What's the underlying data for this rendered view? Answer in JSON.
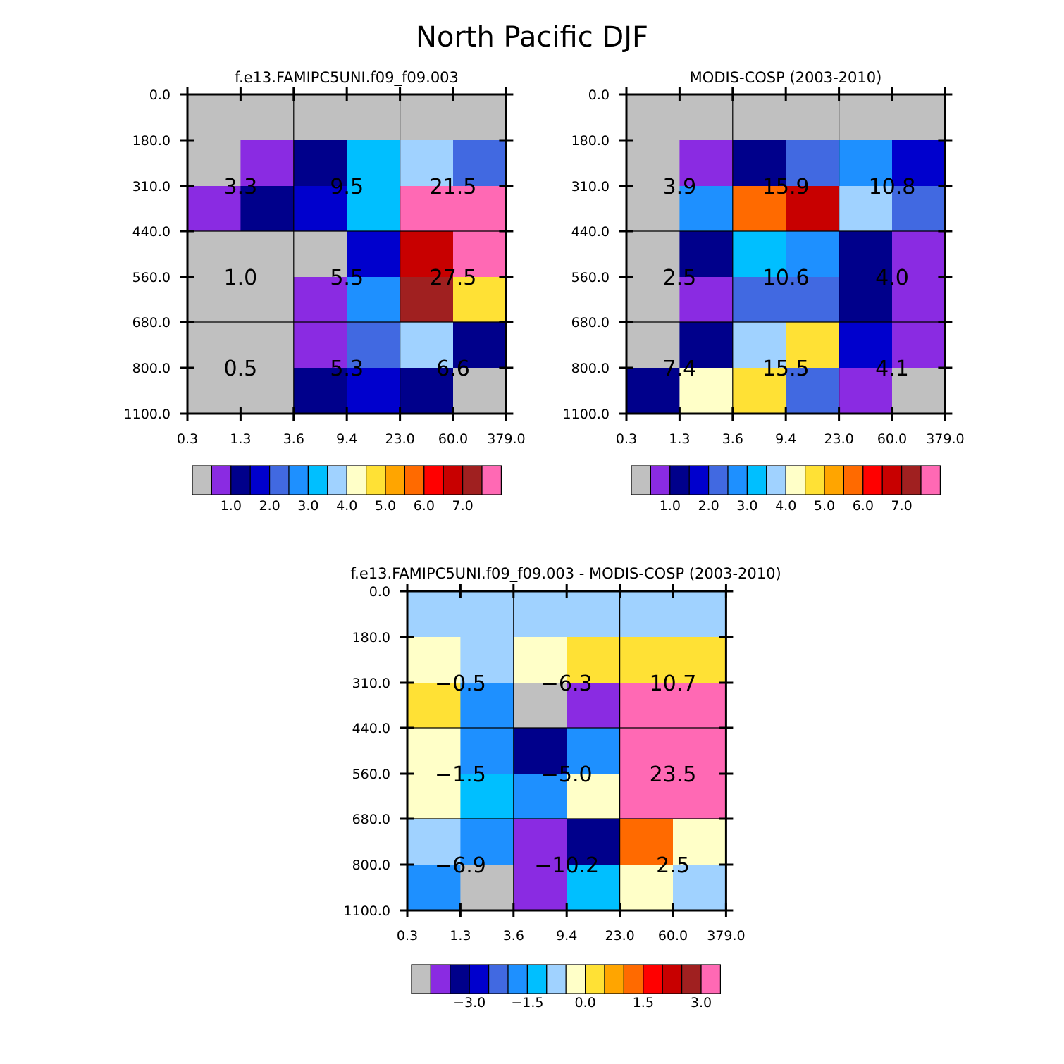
{
  "title": "North Pacific DJF",
  "palette": [
    "#c0c0c0",
    "#8a2be2",
    "#00008b",
    "#0000cd",
    "#4169e1",
    "#1e90ff",
    "#00bfff",
    "#a0d2ff",
    "#ffffc8",
    "#ffe135",
    "#ffa500",
    "#ff6a00",
    "#ff0000",
    "#c80000",
    "#a02020",
    "#ff69b4"
  ],
  "chart_data": [
    {
      "type": "heatmap",
      "title": "f.e13.FAMIPC5UNI.f09_f09.003",
      "x_tick_labels": [
        "0.3",
        "1.3",
        "3.6",
        "9.4",
        "23.0",
        "60.0",
        "379.0"
      ],
      "y_tick_labels": [
        "0.0",
        "180.0",
        "310.0",
        "440.0",
        "560.0",
        "680.0",
        "800.0",
        "1100.0"
      ],
      "cells": [
        [
          0,
          0,
          0,
          0,
          0,
          0
        ],
        [
          0,
          1,
          2,
          6,
          7,
          4
        ],
        [
          1,
          2,
          3,
          6,
          15,
          15
        ],
        [
          0,
          0,
          0,
          3,
          13,
          15
        ],
        [
          0,
          0,
          1,
          5,
          14,
          9
        ],
        [
          0,
          0,
          1,
          4,
          7,
          2
        ],
        [
          0,
          0,
          2,
          3,
          2,
          0
        ]
      ],
      "group_values": [
        [
          "3.3",
          "9.5",
          "21.5"
        ],
        [
          "1.0",
          "5.5",
          "27.5"
        ],
        [
          "0.5",
          "5.3",
          "6.6"
        ]
      ],
      "colorbar": {
        "labels": [
          "1.0",
          "2.0",
          "3.0",
          "4.0",
          "5.0",
          "6.0",
          "7.0"
        ]
      }
    },
    {
      "type": "heatmap",
      "title": "MODIS-COSP (2003-2010)",
      "x_tick_labels": [
        "0.3",
        "1.3",
        "3.6",
        "9.4",
        "23.0",
        "60.0",
        "379.0"
      ],
      "y_tick_labels": [
        "0.0",
        "180.0",
        "310.0",
        "440.0",
        "560.0",
        "680.0",
        "800.0",
        "1100.0"
      ],
      "cells": [
        [
          0,
          0,
          0,
          0,
          0,
          0
        ],
        [
          0,
          1,
          2,
          4,
          5,
          3
        ],
        [
          0,
          5,
          11,
          13,
          7,
          4
        ],
        [
          0,
          2,
          6,
          5,
          2,
          1
        ],
        [
          0,
          1,
          4,
          4,
          2,
          1
        ],
        [
          0,
          2,
          7,
          9,
          3,
          1
        ],
        [
          2,
          8,
          9,
          4,
          1,
          0
        ]
      ],
      "group_values": [
        [
          "3.9",
          "15.9",
          "10.8"
        ],
        [
          "2.5",
          "10.6",
          "4.0"
        ],
        [
          "7.4",
          "15.5",
          "4.1"
        ]
      ],
      "colorbar": {
        "labels": [
          "1.0",
          "2.0",
          "3.0",
          "4.0",
          "5.0",
          "6.0",
          "7.0"
        ]
      }
    },
    {
      "type": "heatmap",
      "title": "f.e13.FAMIPC5UNI.f09_f09.003 - MODIS-COSP (2003-2010)",
      "x_tick_labels": [
        "0.3",
        "1.3",
        "3.6",
        "9.4",
        "23.0",
        "60.0",
        "379.0"
      ],
      "y_tick_labels": [
        "0.0",
        "180.0",
        "310.0",
        "440.0",
        "560.0",
        "680.0",
        "800.0",
        "1100.0"
      ],
      "cells": [
        [
          7,
          7,
          7,
          7,
          7,
          7
        ],
        [
          8,
          7,
          8,
          9,
          9,
          9
        ],
        [
          9,
          5,
          0,
          1,
          15,
          15
        ],
        [
          8,
          5,
          2,
          5,
          15,
          15
        ],
        [
          8,
          6,
          5,
          8,
          15,
          15
        ],
        [
          7,
          5,
          1,
          2,
          11,
          8
        ],
        [
          5,
          0,
          1,
          6,
          8,
          7
        ]
      ],
      "group_values": [
        [
          "-0.5",
          "-6.3",
          "10.7"
        ],
        [
          "-1.5",
          "-5.0",
          "23.5"
        ],
        [
          "-6.9",
          "-10.2",
          "2.5"
        ]
      ],
      "colorbar": {
        "labels": [
          "-3.0",
          "-1.5",
          "0.0",
          "1.5",
          "3.0"
        ]
      }
    }
  ]
}
